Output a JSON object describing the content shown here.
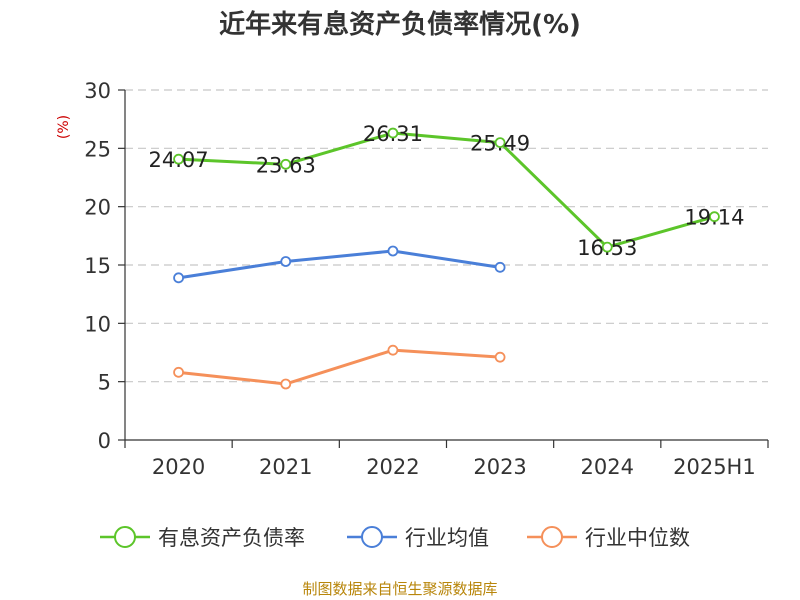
{
  "chart_data": {
    "type": "line",
    "title": "近年来有息资产负债率情况(%)",
    "ylabel": "(%)",
    "xlabel": "",
    "categories": [
      "2020",
      "2021",
      "2022",
      "2023",
      "2024",
      "2025H1"
    ],
    "ylim": [
      0,
      30
    ],
    "yticks": [
      0,
      5,
      10,
      15,
      20,
      25,
      30
    ],
    "grid": true,
    "legend_position": "bottom",
    "series": [
      {
        "name": "有息资产负债率",
        "color": "#5cc52a",
        "values": [
          24.07,
          23.63,
          26.31,
          25.49,
          16.53,
          19.14
        ],
        "labels": [
          "24.07",
          "23.63",
          "26.31",
          "25.49",
          "16.53",
          "19.14"
        ]
      },
      {
        "name": "行业均值",
        "color": "#4a7fd8",
        "values": [
          13.9,
          15.3,
          16.2,
          14.8,
          null,
          null
        ]
      },
      {
        "name": "行业中位数",
        "color": "#f5905a",
        "values": [
          5.8,
          4.8,
          7.7,
          7.1,
          null,
          null
        ]
      }
    ]
  },
  "footer": {
    "source": "制图数据来自恒生聚源数据库"
  }
}
